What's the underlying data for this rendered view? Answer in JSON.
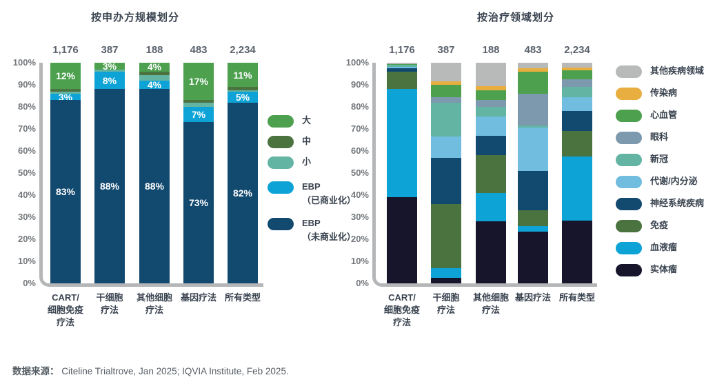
{
  "page": {
    "source_label": "数据来源：",
    "source_text": "Citeline Trialtrove, Jan 2025; IQVIA Institute, Feb 2025."
  },
  "chart_data": [
    {
      "type": "bar",
      "subtype": "stacked-100-percent-column",
      "title": "按申办方规模划分",
      "ylabel": "",
      "xlabel": "",
      "ylim": [
        0,
        100
      ],
      "grid": false,
      "legend_position": "right",
      "yticks": [
        "100%",
        "90%",
        "80%",
        "70%",
        "60%",
        "50%",
        "40%",
        "30%",
        "20%",
        "10%",
        "0%"
      ],
      "axis_color": "#b4b6b7",
      "series": [
        {
          "name": "EBP（未商业化）",
          "color": "#12496f"
        },
        {
          "name": "EBP（已商业化）",
          "color": "#0da3d6"
        },
        {
          "name": "小",
          "color": "#64b4a3"
        },
        {
          "name": "中",
          "color": "#4b7340"
        },
        {
          "name": "大",
          "color": "#4ca04e"
        }
      ],
      "legend": [
        {
          "color": "#4ca04e",
          "lines": [
            "大"
          ]
        },
        {
          "color": "#4b7340",
          "lines": [
            "中"
          ]
        },
        {
          "color": "#64b4a3",
          "lines": [
            "小"
          ]
        },
        {
          "color": "#0da3d6",
          "lines": [
            "EBP",
            "（已商业化）"
          ]
        },
        {
          "color": "#12496f",
          "lines": [
            "EBP",
            "（未商业化）"
          ]
        }
      ],
      "bars": [
        {
          "category_lines": [
            "CART/",
            "细胞免疫",
            "疗法"
          ],
          "total": "1,176",
          "values": [
            83,
            3,
            1,
            1,
            12
          ],
          "labels": [
            "83%",
            "3%",
            "",
            "",
            "12%"
          ]
        },
        {
          "category_lines": [
            "干细胞",
            "疗法"
          ],
          "total": "387",
          "values": [
            88,
            8,
            1,
            0,
            3
          ],
          "labels": [
            "88%",
            "8%",
            "",
            "",
            "3%"
          ]
        },
        {
          "category_lines": [
            "其他细胞",
            "疗法"
          ],
          "total": "188",
          "values": [
            88,
            4,
            2.5,
            1.5,
            4
          ],
          "labels": [
            "88%",
            "4%",
            "",
            "",
            "4%"
          ]
        },
        {
          "category_lines": [
            "基因疗法"
          ],
          "total": "483",
          "values": [
            73,
            7,
            2,
            1,
            17
          ],
          "labels": [
            "73%",
            "7%",
            "",
            "",
            "17%"
          ]
        },
        {
          "category_lines": [
            "所有类型"
          ],
          "total": "2,234",
          "values": [
            82,
            5,
            0.5,
            1.5,
            11
          ],
          "labels": [
            "82%",
            "5%",
            "",
            "",
            "11%"
          ]
        }
      ]
    },
    {
      "type": "bar",
      "subtype": "stacked-100-percent-column",
      "title": "按治疗领域划分",
      "ylabel": "",
      "xlabel": "",
      "ylim": [
        0,
        100
      ],
      "grid": false,
      "legend_position": "right",
      "yticks": [
        "100%",
        "90%",
        "80%",
        "70%",
        "60%",
        "50%",
        "40%",
        "30%",
        "20%",
        "10%",
        "0%"
      ],
      "axis_color": "#b4b6b7",
      "series": [
        {
          "name": "实体瘤",
          "color": "#16152c"
        },
        {
          "name": "血液瘤",
          "color": "#0da3d6"
        },
        {
          "name": "免疫",
          "color": "#4b7340"
        },
        {
          "name": "神经系统疾病",
          "color": "#12496f"
        },
        {
          "name": "代谢/内分泌",
          "color": "#70bde0"
        },
        {
          "name": "新冠",
          "color": "#64b4a3"
        },
        {
          "name": "眼科",
          "color": "#7d99ad"
        },
        {
          "name": "心血管",
          "color": "#4ca04e"
        },
        {
          "name": "传染病",
          "color": "#e9ae40"
        },
        {
          "name": "其他疾病领域",
          "color": "#b8b9b9"
        }
      ],
      "legend": [
        {
          "color": "#b8b9b9",
          "lines": [
            "其他疾病领域"
          ]
        },
        {
          "color": "#e9ae40",
          "lines": [
            "传染病"
          ]
        },
        {
          "color": "#4ca04e",
          "lines": [
            "心血管"
          ]
        },
        {
          "color": "#7d99ad",
          "lines": [
            "眼科"
          ]
        },
        {
          "color": "#64b4a3",
          "lines": [
            "新冠"
          ]
        },
        {
          "color": "#70bde0",
          "lines": [
            "代谢/内分泌"
          ]
        },
        {
          "color": "#12496f",
          "lines": [
            "神经系统疾病"
          ]
        },
        {
          "color": "#4b7340",
          "lines": [
            "免疫"
          ]
        },
        {
          "color": "#0da3d6",
          "lines": [
            "血液瘤"
          ]
        },
        {
          "color": "#16152c",
          "lines": [
            "实体瘤"
          ]
        }
      ],
      "bars": [
        {
          "category_lines": [
            "CART/",
            "细胞免疫",
            "疗法"
          ],
          "total": "1,176",
          "values": [
            39,
            49,
            8,
            1.5,
            0.5,
            1,
            0,
            0.5,
            0,
            0.5
          ],
          "labels": [
            "",
            "",
            "",
            "",
            "",
            "",
            "",
            "",
            "",
            ""
          ]
        },
        {
          "category_lines": [
            "干细胞",
            "疗法"
          ],
          "total": "387",
          "values": [
            2.5,
            4.5,
            29,
            21,
            9.5,
            15.5,
            2.5,
            5.5,
            1.5,
            8.5
          ],
          "labels": [
            "",
            "",
            "",
            "",
            "",
            "",
            "",
            "",
            "",
            ""
          ]
        },
        {
          "category_lines": [
            "其他细胞",
            "疗法"
          ],
          "total": "188",
          "values": [
            28,
            13,
            17,
            9,
            8.5,
            4.5,
            3,
            4.5,
            2,
            10.5
          ],
          "labels": [
            "",
            "",
            "",
            "",
            "",
            "",
            "",
            "",
            "",
            ""
          ]
        },
        {
          "category_lines": [
            "基因疗法"
          ],
          "total": "483",
          "values": [
            23.5,
            2.5,
            7,
            18,
            19.5,
            1,
            14.5,
            10,
            1.5,
            2.5
          ],
          "labels": [
            "",
            "",
            "",
            "",
            "",
            "",
            "",
            "",
            "",
            ""
          ]
        },
        {
          "category_lines": [
            "所有类型"
          ],
          "total": "2,234",
          "values": [
            28.5,
            29,
            11.5,
            9,
            6.5,
            4.5,
            3.5,
            4,
            1.2,
            2.3
          ],
          "labels": [
            "",
            "",
            "",
            "",
            "",
            "",
            "",
            "",
            "",
            ""
          ]
        }
      ]
    }
  ]
}
